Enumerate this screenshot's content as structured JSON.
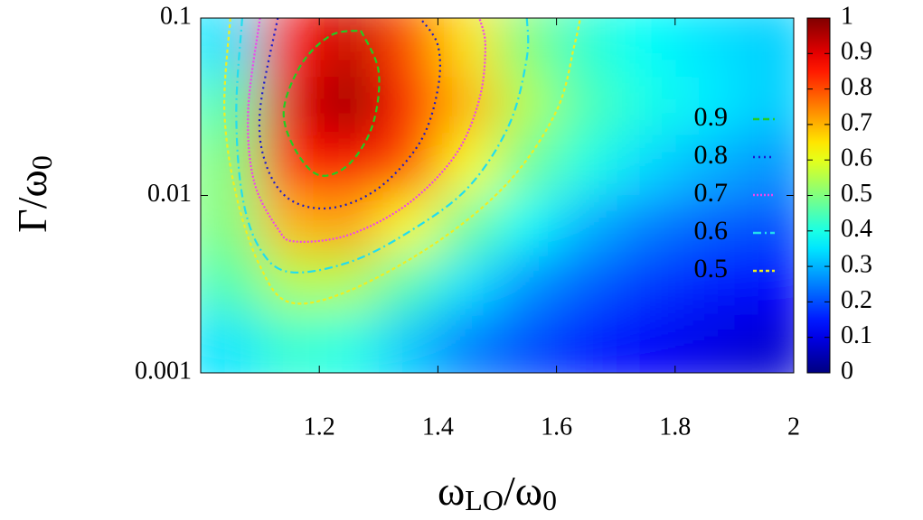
{
  "chart_data": {
    "type": "heatmap",
    "xlabel": [
      "ω",
      "LO",
      "/ω",
      "0"
    ],
    "ylabel": [
      "Γ/ω",
      "0"
    ],
    "xlim": [
      1,
      2
    ],
    "xticks": [
      1.2,
      1.4,
      1.6,
      1.8,
      2
    ],
    "ylim": [
      0.001,
      0.1
    ],
    "yticks": [
      0.001,
      0.01,
      0.1
    ],
    "ylog": true,
    "heatmap": {
      "x": [
        1.05,
        1.15,
        1.25,
        1.35,
        1.45,
        1.55,
        1.65,
        1.75,
        1.85,
        1.95
      ],
      "y": [
        0.068,
        0.032,
        0.015,
        0.0068,
        0.0032,
        0.0015
      ],
      "z": [
        [
          0.35,
          0.85,
          0.93,
          0.8,
          0.65,
          0.5,
          0.42,
          0.38,
          0.35,
          0.33
        ],
        [
          0.45,
          0.9,
          0.98,
          0.85,
          0.7,
          0.55,
          0.45,
          0.4,
          0.36,
          0.33
        ],
        [
          0.5,
          0.85,
          0.88,
          0.8,
          0.62,
          0.48,
          0.4,
          0.34,
          0.3,
          0.27
        ],
        [
          0.5,
          0.7,
          0.72,
          0.62,
          0.48,
          0.38,
          0.3,
          0.25,
          0.22,
          0.2
        ],
        [
          0.45,
          0.55,
          0.55,
          0.45,
          0.35,
          0.27,
          0.22,
          0.18,
          0.15,
          0.13
        ],
        [
          0.35,
          0.42,
          0.4,
          0.32,
          0.25,
          0.2,
          0.15,
          0.12,
          0.1,
          0.08
        ]
      ]
    },
    "colorbar": {
      "lim": [
        0,
        1
      ],
      "ticks": [
        0,
        0.1,
        0.2,
        0.3,
        0.4,
        0.5,
        0.6,
        0.7,
        0.8,
        0.9,
        1
      ]
    },
    "series": [
      {
        "name": "0.9",
        "color": "#22cc22",
        "x": [
          1.27,
          1.3,
          1.29,
          1.25,
          1.2,
          1.16,
          1.14,
          1.17,
          1.22,
          1.27
        ],
        "y": [
          0.085,
          0.05,
          0.025,
          0.015,
          0.013,
          0.018,
          0.03,
          0.055,
          0.08,
          0.085
        ]
      },
      {
        "name": "0.8",
        "color": "#1a1acc",
        "x": [
          1.13,
          1.1,
          1.11,
          1.15,
          1.22,
          1.3,
          1.37,
          1.4,
          1.4,
          1.37
        ],
        "y": [
          0.1,
          0.03,
          0.015,
          0.0095,
          0.0085,
          0.011,
          0.02,
          0.04,
          0.07,
          0.1
        ]
      },
      {
        "name": "0.7",
        "color": "#ee44ee",
        "x": [
          1.1,
          1.08,
          1.09,
          1.13,
          1.16,
          1.25,
          1.35,
          1.43,
          1.47,
          1.48,
          1.47
        ],
        "y": [
          0.1,
          0.03,
          0.012,
          0.0065,
          0.0055,
          0.006,
          0.009,
          0.017,
          0.035,
          0.07,
          0.1
        ]
      },
      {
        "name": "0.6",
        "color": "#22ddee",
        "x": [
          1.07,
          1.06,
          1.07,
          1.1,
          1.15,
          1.25,
          1.35,
          1.45,
          1.52,
          1.55,
          1.55
        ],
        "y": [
          0.1,
          0.03,
          0.01,
          0.005,
          0.0037,
          0.0042,
          0.0062,
          0.011,
          0.025,
          0.06,
          0.1
        ]
      },
      {
        "name": "0.5",
        "color": "#eeee22",
        "x": [
          1.05,
          1.04,
          1.06,
          1.1,
          1.15,
          1.25,
          1.4,
          1.52,
          1.6,
          1.63,
          1.64
        ],
        "y": [
          0.1,
          0.03,
          0.01,
          0.004,
          0.0025,
          0.0029,
          0.0055,
          0.012,
          0.03,
          0.07,
          0.1
        ]
      }
    ]
  }
}
